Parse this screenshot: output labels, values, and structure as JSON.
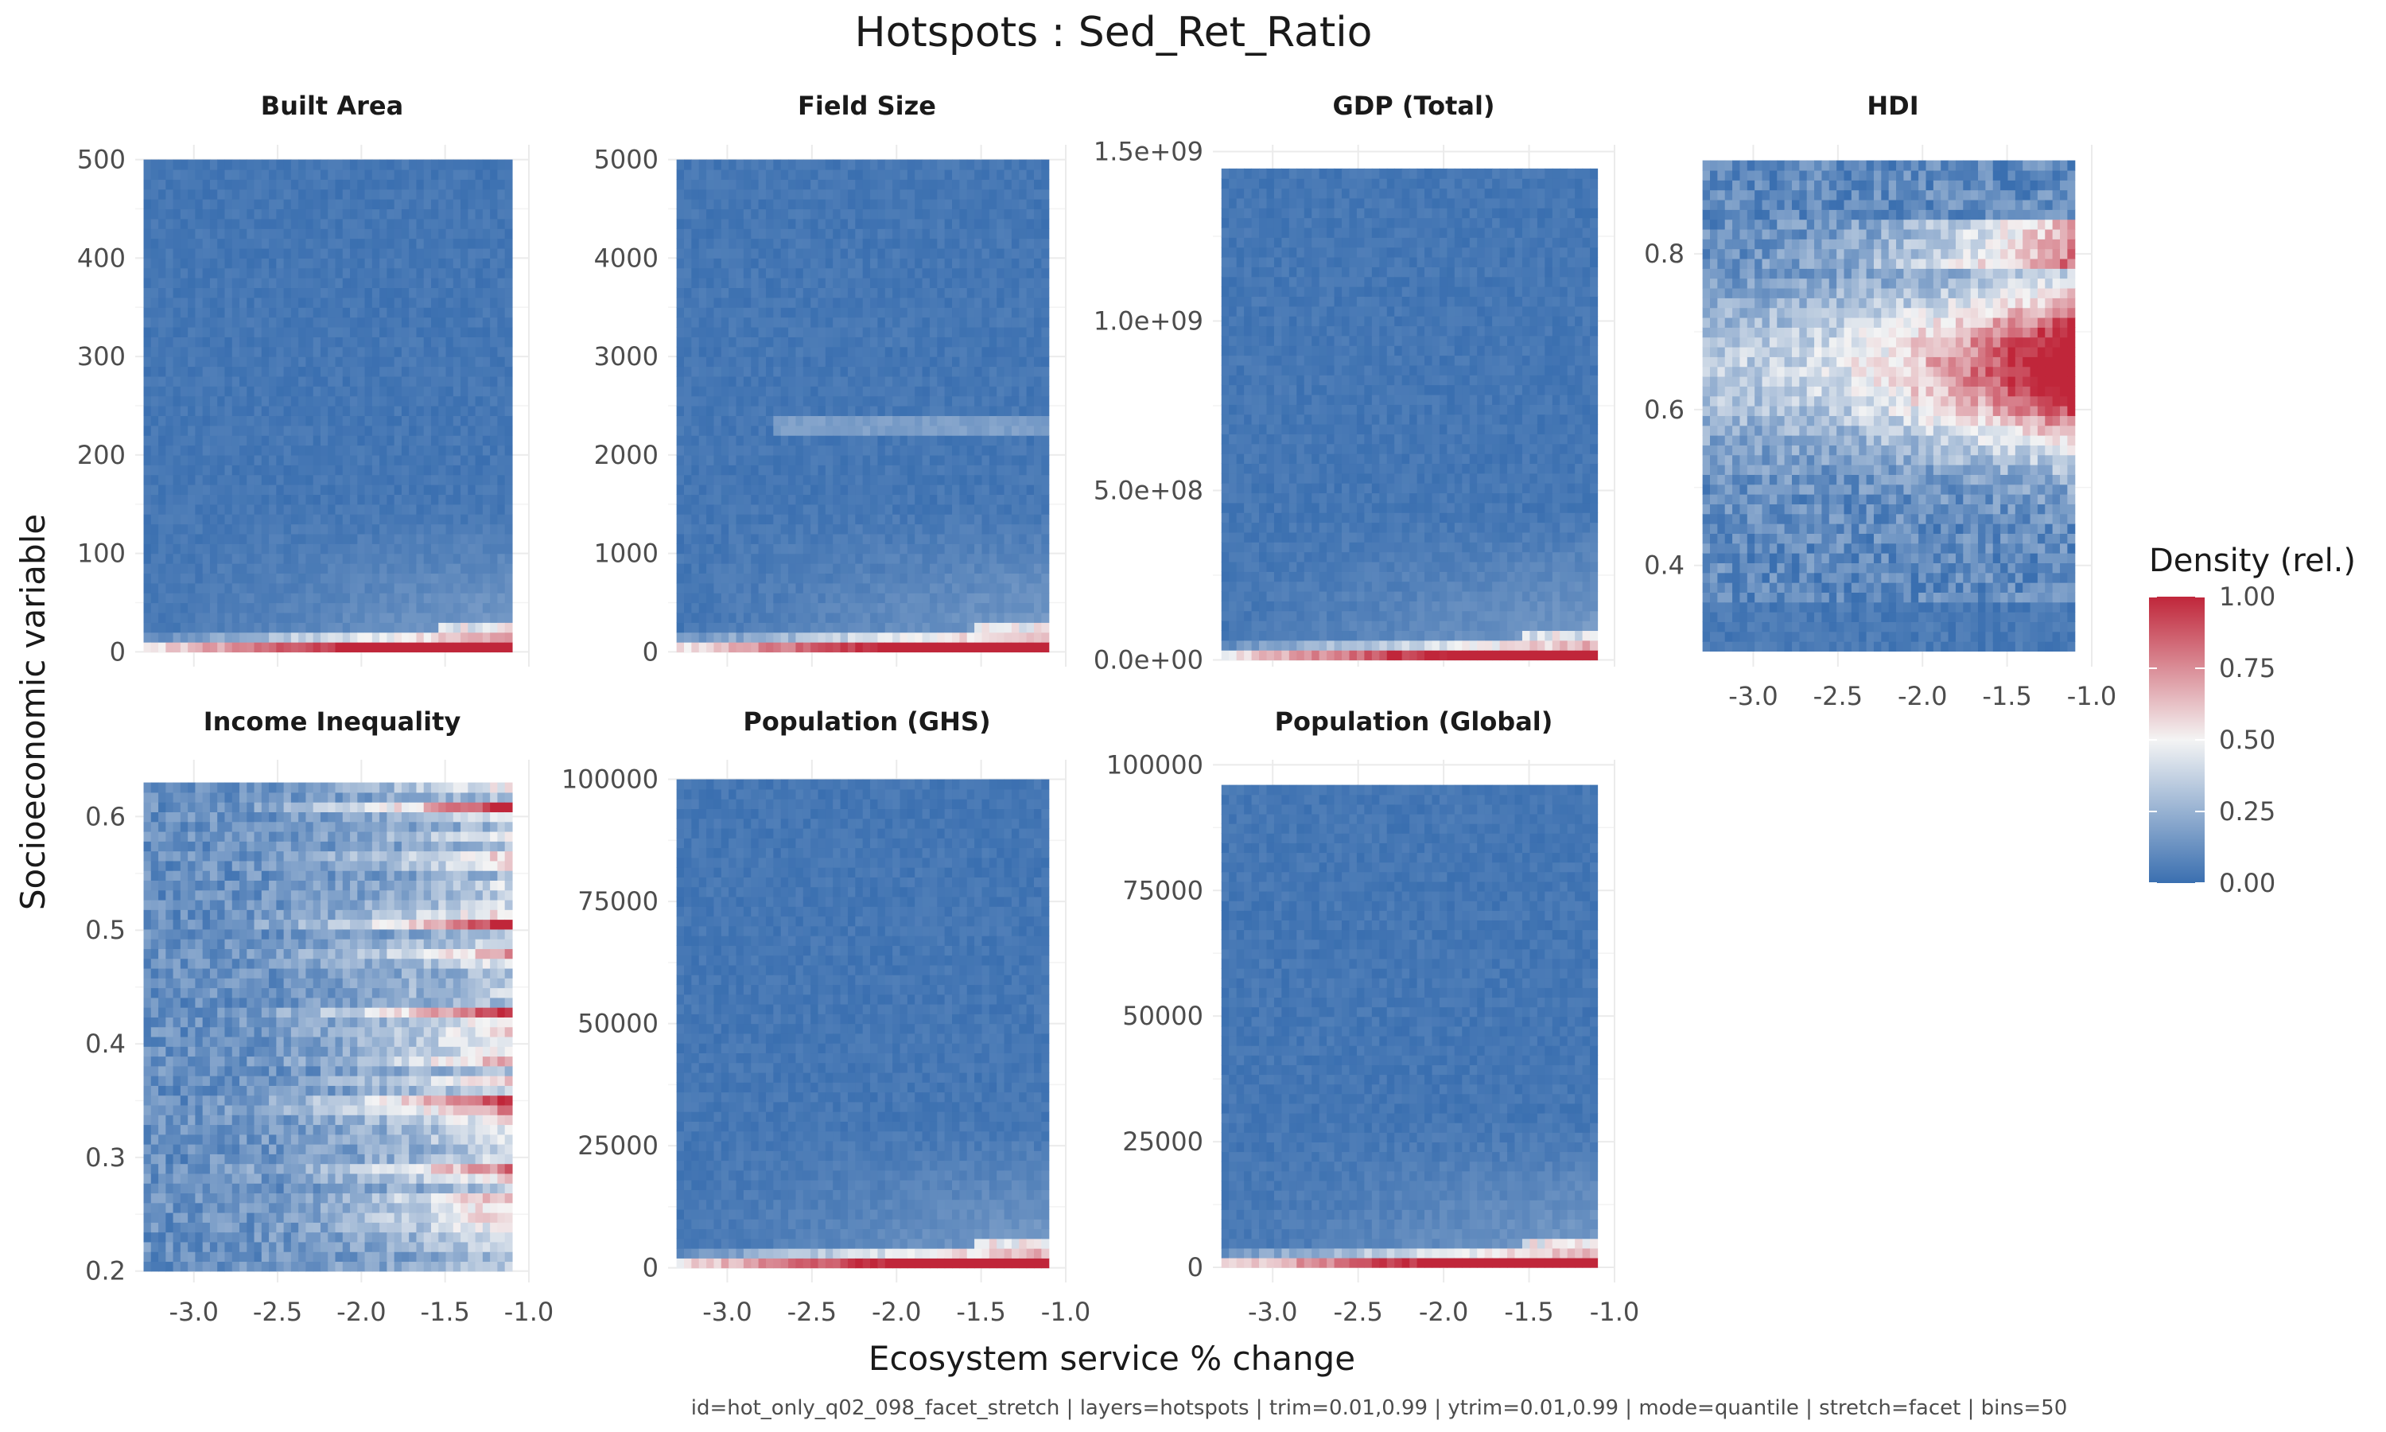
{
  "title": "Hotspots : Sed_Ret_Ratio",
  "caption": "id=hot_only_q02_098_facet_stretch | layers=hotspots | trim=0.01,0.99 | ytrim=0.01,0.99 | mode=quantile | stretch=facet | bins=50",
  "xlabel": "Ecosystem service % change",
  "ylabel": "Socioeconomic variable",
  "legend": {
    "title": "Density (rel.)",
    "ticks": [
      "1.00",
      "0.75",
      "0.50",
      "0.25",
      "0.00"
    ],
    "colors": {
      "low": "#3a6fb0",
      "mid": "#f4f4f4",
      "high": "#c0263a"
    }
  },
  "chart_data": {
    "type": "heatmap",
    "bins": 50,
    "x_range": [
      -3.3,
      -1.1
    ],
    "x_ticks": [
      "-3.0",
      "-2.5",
      "-2.0",
      "-1.5",
      "-1.0"
    ],
    "x_tick_values": [
      -3.0,
      -2.5,
      -2.0,
      -1.5,
      -1.0
    ],
    "x_axis_limits": [
      -3.35,
      -1.0
    ],
    "value_range": [
      0,
      1
    ],
    "facets": [
      {
        "name": "Built Area",
        "y_ticks": [
          "500",
          "400",
          "300",
          "200",
          "100",
          "0"
        ],
        "y_tick_values": [
          500,
          400,
          300,
          200,
          100,
          0
        ],
        "y_axis_limits": [
          -15,
          515
        ],
        "y_data_range": [
          0,
          500
        ],
        "density_pattern": "bottom-band",
        "show_x_ticks": false
      },
      {
        "name": "Field Size",
        "y_ticks": [
          "5000",
          "4000",
          "3000",
          "2000",
          "1000",
          "0"
        ],
        "y_tick_values": [
          5000,
          4000,
          3000,
          2000,
          1000,
          0
        ],
        "y_axis_limits": [
          -150,
          5150
        ],
        "y_data_range": [
          0,
          5000
        ],
        "density_pattern": "bottom-band",
        "show_x_ticks": false
      },
      {
        "name": "GDP (Total)",
        "y_ticks": [
          "1.5e+09",
          "1.0e+09",
          "5.0e+08",
          "0.0e+00"
        ],
        "y_tick_values": [
          1500000000.0,
          1000000000.0,
          500000000.0,
          0
        ],
        "y_axis_limits": [
          -20000000.0,
          1520000000.0
        ],
        "y_data_range": [
          0,
          1450000000.0
        ],
        "density_pattern": "bottom-band",
        "show_x_ticks": false
      },
      {
        "name": "HDI",
        "y_ticks": [
          "0.8",
          "0.6",
          "0.4"
        ],
        "y_tick_values": [
          0.8,
          0.6,
          0.4
        ],
        "y_axis_limits": [
          0.27,
          0.94
        ],
        "y_data_range": [
          0.29,
          0.92
        ],
        "density_pattern": "hdi",
        "show_x_ticks": true
      },
      {
        "name": "Income Inequality",
        "y_ticks": [
          "0.6",
          "0.5",
          "0.4",
          "0.3",
          "0.2"
        ],
        "y_tick_values": [
          0.6,
          0.5,
          0.4,
          0.3,
          0.2
        ],
        "y_axis_limits": [
          0.19,
          0.65
        ],
        "y_data_range": [
          0.2,
          0.63
        ],
        "density_pattern": "stripes",
        "show_x_ticks": true
      },
      {
        "name": "Population (GHS)",
        "y_ticks": [
          "100000",
          "75000",
          "50000",
          "25000",
          "0"
        ],
        "y_tick_values": [
          100000,
          75000,
          50000,
          25000,
          0
        ],
        "y_axis_limits": [
          -3000,
          104000
        ],
        "y_data_range": [
          0,
          100000
        ],
        "density_pattern": "bottom-band",
        "show_x_ticks": true
      },
      {
        "name": "Population (Global)",
        "y_ticks": [
          "100000",
          "75000",
          "50000",
          "25000",
          "0"
        ],
        "y_tick_values": [
          100000,
          75000,
          50000,
          25000,
          0
        ],
        "y_axis_limits": [
          -3000,
          101000
        ],
        "y_data_range": [
          0,
          96000
        ],
        "density_pattern": "bottom-band",
        "show_x_ticks": true
      }
    ]
  }
}
